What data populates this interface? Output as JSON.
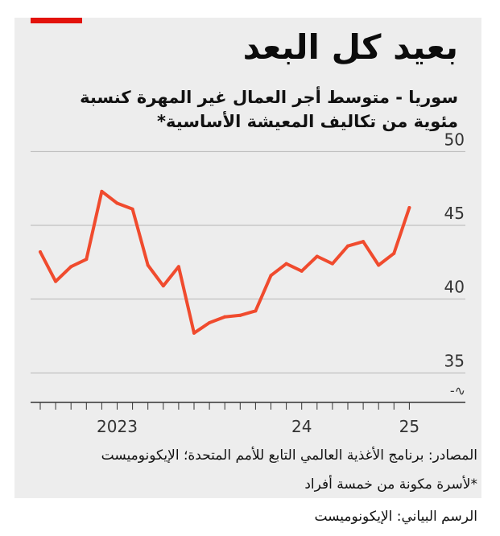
{
  "chart_data": {
    "type": "line",
    "title": "بعيد كل البعد",
    "subtitle": "سوريا - متوسط أجر العمال غير المهرة كنسبة مئوية من تكاليف المعيشة الأساسية",
    "subtitle_marker": "*",
    "ylim": [
      33,
      51
    ],
    "y_ticks": [
      35,
      40,
      45,
      50
    ],
    "y_tick_labels": [
      "35",
      "40",
      "45",
      "50"
    ],
    "x_tick_labels": [
      {
        "label": "2023",
        "month_index": 5
      },
      {
        "label": "24",
        "month_index": 17
      },
      {
        "label": "25",
        "month_index": 24
      }
    ],
    "grid": true,
    "series": [
      {
        "color": "#f04b2e",
        "values": [
          {
            "month_index": 0,
            "y": 43.2
          },
          {
            "month_index": 1,
            "y": 41.2
          },
          {
            "month_index": 2,
            "y": 42.2
          },
          {
            "month_index": 3,
            "y": 42.7
          },
          {
            "month_index": 4,
            "y": 47.3
          },
          {
            "month_index": 5,
            "y": 46.5
          },
          {
            "month_index": 6,
            "y": 46.1
          },
          {
            "month_index": 7,
            "y": 42.3
          },
          {
            "month_index": 8,
            "y": 40.9
          },
          {
            "month_index": 9,
            "y": 42.2
          },
          {
            "month_index": 10,
            "y": 37.7
          },
          {
            "month_index": 11,
            "y": 38.4
          },
          {
            "month_index": 12,
            "y": 38.8
          },
          {
            "month_index": 13,
            "y": 38.9
          },
          {
            "month_index": 14,
            "y": 39.2
          },
          {
            "month_index": 15,
            "y": 41.6
          },
          {
            "month_index": 16,
            "y": 42.4
          },
          {
            "month_index": 17,
            "y": 41.9
          },
          {
            "month_index": 18,
            "y": 42.9
          },
          {
            "month_index": 19,
            "y": 42.4
          },
          {
            "month_index": 20,
            "y": 43.6
          },
          {
            "month_index": 21,
            "y": 43.9
          },
          {
            "month_index": 22,
            "y": 42.3
          },
          {
            "month_index": 23,
            "y": 43.1
          },
          {
            "month_index": 24,
            "y": 46.2
          }
        ]
      }
    ],
    "axis_break": true,
    "axis_break_symbol": "-∿",
    "source": "المصادر: برنامج الأغذية العالمي التابع للأمم المتحدة؛ الإيكونوميست",
    "footnote": "*لأسرة مكونة من خمسة أفراد"
  },
  "credit": "الرسم البياني: الإيكونوميست",
  "colors": {
    "accent": "#e3120b",
    "line": "#f04b2e",
    "background": "#ededed",
    "grid": "#b5b5b5"
  }
}
